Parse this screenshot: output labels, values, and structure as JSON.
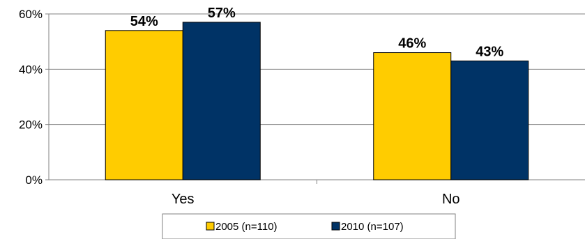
{
  "chart_data": {
    "type": "bar",
    "categories": [
      "Yes",
      "No"
    ],
    "series": [
      {
        "name": "2005 (n=110)",
        "values": [
          54,
          46
        ],
        "labels": [
          "54%",
          "46%"
        ],
        "color": "#FFCC00"
      },
      {
        "name": "2010 (n=107)",
        "values": [
          57,
          43
        ],
        "labels": [
          "57%",
          "43%"
        ],
        "color": "#003366"
      }
    ],
    "ylim": [
      0,
      60
    ],
    "yticks": [
      0,
      20,
      40,
      60
    ],
    "ytick_labels": [
      "0%",
      "20%",
      "40%",
      "60%"
    ],
    "grid": true,
    "legend": "bottom",
    "title": "",
    "xlabel": "",
    "ylabel": ""
  }
}
